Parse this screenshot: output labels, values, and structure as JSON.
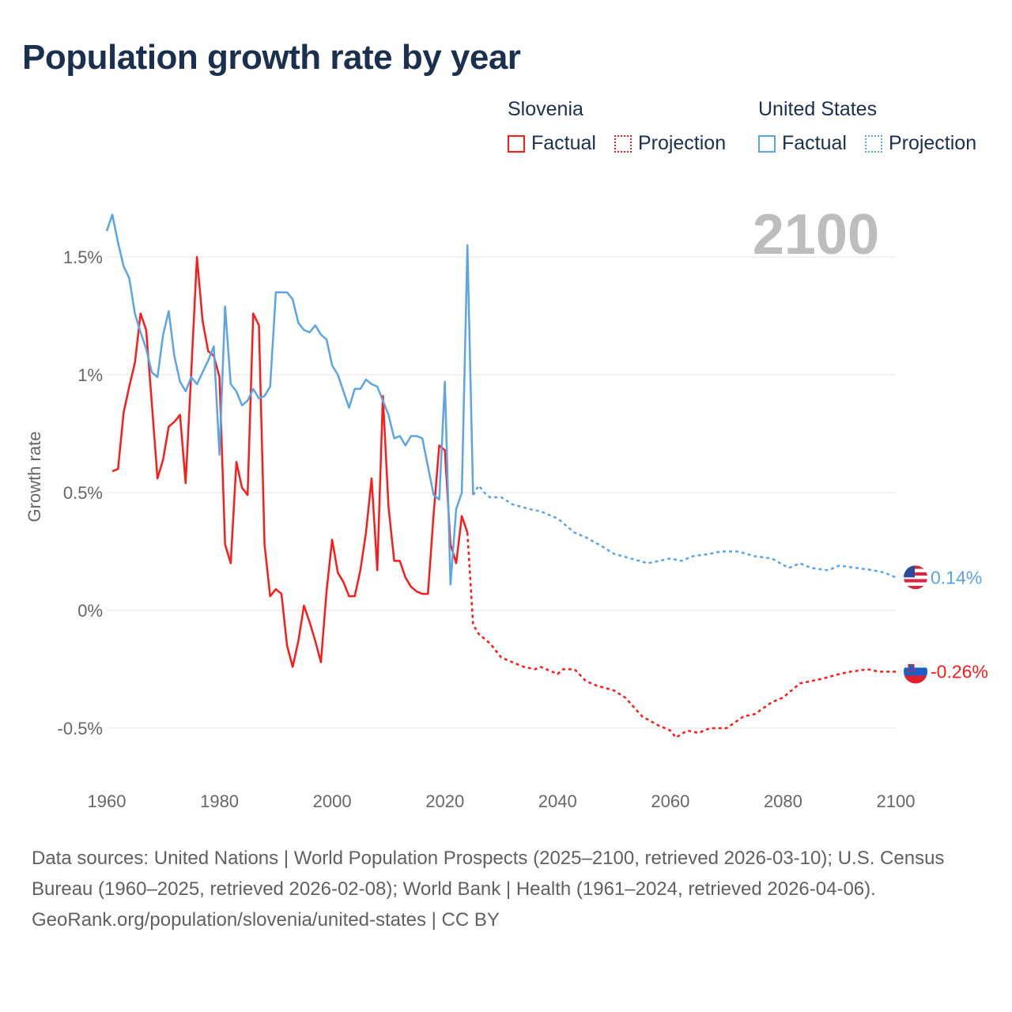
{
  "title": "Population growth rate by year",
  "legend": {
    "groups": [
      {
        "name": "Slovenia",
        "color": "#ff1a1a",
        "items": [
          "Factual",
          "Projection"
        ]
      },
      {
        "name": "United States",
        "color": "#5ba4e6",
        "items": [
          "Factual",
          "Projection"
        ]
      }
    ]
  },
  "current_year": "2100",
  "end_labels": {
    "united_states": "0.14%",
    "slovenia": "-0.26%"
  },
  "footer": {
    "sources": "Data sources: United Nations | World Population Prospects (2025–2100, retrieved 2026-03-10); U.S. Census Bureau (1960–2025, retrieved 2026-02-08); World Bank | Health (1961–2024, retrieved 2026-04-06).",
    "attribution": "GeoRank.org/population/slovenia/united-states | CC BY"
  },
  "chart_data": {
    "type": "line",
    "title": "Population growth rate by year",
    "xlabel": "",
    "ylabel": "Growth rate",
    "xlim": [
      1960,
      2100
    ],
    "ylim": [
      -0.7,
      1.75
    ],
    "grid": true,
    "x_ticks": [
      "1960",
      "1980",
      "2000",
      "2020",
      "2040",
      "2060",
      "2080",
      "2100"
    ],
    "x_tick_values": [
      1960,
      1980,
      2000,
      2020,
      2040,
      2060,
      2080,
      2100
    ],
    "y_ticks": [
      "1.5%",
      "1%",
      "0.5%",
      "0%",
      "-0.5%"
    ],
    "y_tick_values": [
      1.5,
      1,
      0.5,
      0,
      -0.5
    ],
    "legend_placement": "top-right",
    "series": [
      {
        "name": "Slovenia Factual",
        "color": "#ff1a1a",
        "dashed": false,
        "x": [
          1961,
          1962,
          1963,
          1964,
          1965,
          1966,
          1967,
          1968,
          1969,
          1970,
          1971,
          1972,
          1973,
          1974,
          1975,
          1976,
          1977,
          1978,
          1979,
          1980,
          1981,
          1982,
          1983,
          1984,
          1985,
          1986,
          1987,
          1988,
          1989,
          1990,
          1991,
          1992,
          1993,
          1994,
          1995,
          1996,
          1997,
          1998,
          1999,
          2000,
          2001,
          2002,
          2003,
          2004,
          2005,
          2006,
          2007,
          2008,
          2009,
          2010,
          2011,
          2012,
          2013,
          2014,
          2015,
          2016,
          2017,
          2018,
          2019,
          2020,
          2021,
          2022,
          2023,
          2024
        ],
        "y": [
          0.59,
          0.6,
          0.84,
          0.95,
          1.05,
          1.26,
          1.19,
          0.88,
          0.56,
          0.64,
          0.78,
          0.8,
          0.83,
          0.54,
          1.01,
          1.5,
          1.23,
          1.1,
          1.08,
          0.99,
          0.28,
          0.2,
          0.63,
          0.52,
          0.49,
          1.26,
          1.21,
          0.28,
          0.06,
          0.09,
          0.07,
          -0.15,
          -0.24,
          -0.13,
          0.02,
          -0.05,
          -0.13,
          -0.22,
          0.08,
          0.3,
          0.16,
          0.12,
          0.06,
          0.06,
          0.17,
          0.33,
          0.56,
          0.17,
          0.91,
          0.44,
          0.21,
          0.21,
          0.14,
          0.1,
          0.08,
          0.07,
          0.07,
          0.41,
          0.7,
          0.68,
          0.28,
          0.2,
          0.4,
          0.33
        ]
      },
      {
        "name": "Slovenia Projection",
        "color": "#ff1a1a",
        "dashed": true,
        "x": [
          2024,
          2025,
          2026,
          2027,
          2028,
          2030,
          2032,
          2034,
          2036,
          2037,
          2039,
          2040,
          2041,
          2043,
          2045,
          2047,
          2050,
          2052,
          2055,
          2058,
          2060,
          2061,
          2063,
          2065,
          2067,
          2070,
          2073,
          2075,
          2078,
          2080,
          2083,
          2085,
          2087,
          2090,
          2092,
          2095,
          2097,
          2100
        ],
        "y": [
          0.33,
          -0.06,
          -0.1,
          -0.12,
          -0.14,
          -0.2,
          -0.22,
          -0.24,
          -0.25,
          -0.24,
          -0.26,
          -0.27,
          -0.25,
          -0.25,
          -0.3,
          -0.32,
          -0.34,
          -0.37,
          -0.45,
          -0.49,
          -0.51,
          -0.54,
          -0.51,
          -0.52,
          -0.5,
          -0.5,
          -0.45,
          -0.44,
          -0.39,
          -0.37,
          -0.31,
          -0.3,
          -0.29,
          -0.27,
          -0.26,
          -0.25,
          -0.26,
          -0.26
        ]
      },
      {
        "name": "United States Factual",
        "color": "#5ba4e6",
        "dashed": false,
        "x": [
          1960,
          1961,
          1962,
          1963,
          1964,
          1965,
          1966,
          1967,
          1968,
          1969,
          1970,
          1971,
          1972,
          1973,
          1974,
          1975,
          1976,
          1977,
          1978,
          1979,
          1980,
          1981,
          1982,
          1983,
          1984,
          1985,
          1986,
          1987,
          1988,
          1989,
          1990,
          1991,
          1992,
          1993,
          1994,
          1995,
          1996,
          1997,
          1998,
          1999,
          2000,
          2001,
          2002,
          2003,
          2004,
          2005,
          2006,
          2007,
          2008,
          2009,
          2010,
          2011,
          2012,
          2013,
          2014,
          2015,
          2016,
          2017,
          2018,
          2019,
          2020,
          2021,
          2022,
          2023,
          2024,
          2025
        ],
        "y": [
          1.61,
          1.68,
          1.56,
          1.46,
          1.41,
          1.26,
          1.18,
          1.11,
          1.01,
          0.99,
          1.17,
          1.27,
          1.08,
          0.97,
          0.93,
          0.99,
          0.96,
          1.01,
          1.06,
          1.12,
          0.66,
          1.29,
          0.96,
          0.93,
          0.87,
          0.89,
          0.94,
          0.9,
          0.91,
          0.95,
          1.35,
          1.35,
          1.35,
          1.32,
          1.22,
          1.19,
          1.18,
          1.21,
          1.17,
          1.15,
          1.04,
          1.0,
          0.93,
          0.86,
          0.94,
          0.94,
          0.98,
          0.96,
          0.95,
          0.89,
          0.83,
          0.73,
          0.74,
          0.7,
          0.74,
          0.74,
          0.73,
          0.61,
          0.49,
          0.47,
          0.97,
          0.11,
          0.43,
          0.5,
          1.55,
          0.49
        ]
      },
      {
        "name": "United States Projection",
        "color": "#5ba4e6",
        "dashed": true,
        "x": [
          2025,
          2026,
          2027,
          2028,
          2030,
          2032,
          2035,
          2037,
          2040,
          2043,
          2045,
          2048,
          2050,
          2053,
          2056,
          2058,
          2060,
          2062,
          2064,
          2067,
          2069,
          2072,
          2075,
          2078,
          2081,
          2083,
          2085,
          2088,
          2090,
          2093,
          2096,
          2098,
          2100
        ],
        "y": [
          0.49,
          0.53,
          0.5,
          0.48,
          0.48,
          0.45,
          0.43,
          0.42,
          0.39,
          0.33,
          0.31,
          0.27,
          0.24,
          0.22,
          0.2,
          0.21,
          0.22,
          0.21,
          0.23,
          0.24,
          0.25,
          0.25,
          0.23,
          0.22,
          0.18,
          0.2,
          0.18,
          0.17,
          0.19,
          0.18,
          0.17,
          0.16,
          0.14
        ]
      }
    ]
  }
}
